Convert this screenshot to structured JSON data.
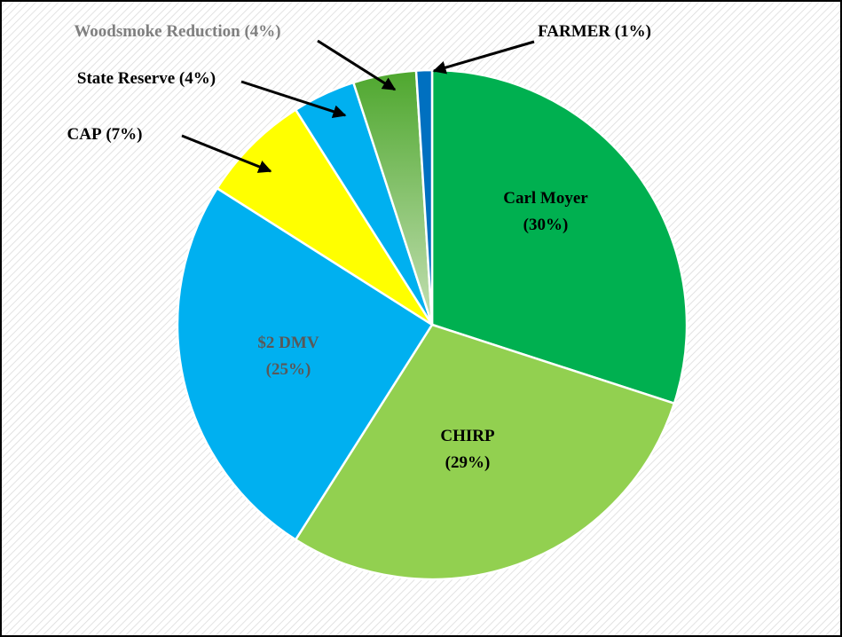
{
  "chart_data": {
    "type": "pie",
    "categories": [
      "Carl Moyer",
      "CHIRP",
      "$2 DMV",
      "CAP",
      "State Reserve",
      "Woodsmoke Reduction",
      "FARMER"
    ],
    "values": [
      30,
      29,
      25,
      7,
      4,
      4,
      1
    ],
    "value_labels": [
      "(30%)",
      "(29%)",
      "(25%)",
      "(7%)",
      "(4%)",
      "(4%)",
      "(1%)"
    ],
    "colors": [
      "#00b050",
      "#92d050",
      "#00b0f0",
      "#ffff00",
      "#00b0f0",
      "#4ea72e",
      "#0070c0"
    ]
  }
}
